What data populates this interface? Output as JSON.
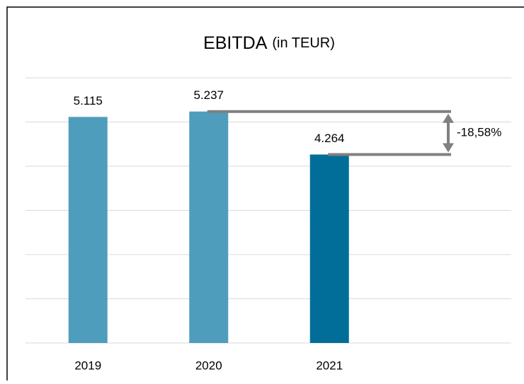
{
  "chart_data": {
    "type": "bar",
    "title": "EBITDA",
    "title_unit": "(in TEUR)",
    "categories": [
      "2019",
      "2020",
      "2021"
    ],
    "values": [
      5115,
      5237,
      4264
    ],
    "value_labels": [
      "5.115",
      "5.237",
      "4.264"
    ],
    "colors": [
      "#4f9dbd",
      "#4f9dbd",
      "#016e99"
    ],
    "ylim": [
      0,
      6000
    ],
    "yticks": [
      0,
      1000,
      2000,
      3000,
      4000,
      5000,
      6000
    ],
    "grid": true,
    "annotation": {
      "text": "-18,58%",
      "between": [
        "2020",
        "2021"
      ],
      "color": "#808080"
    }
  }
}
